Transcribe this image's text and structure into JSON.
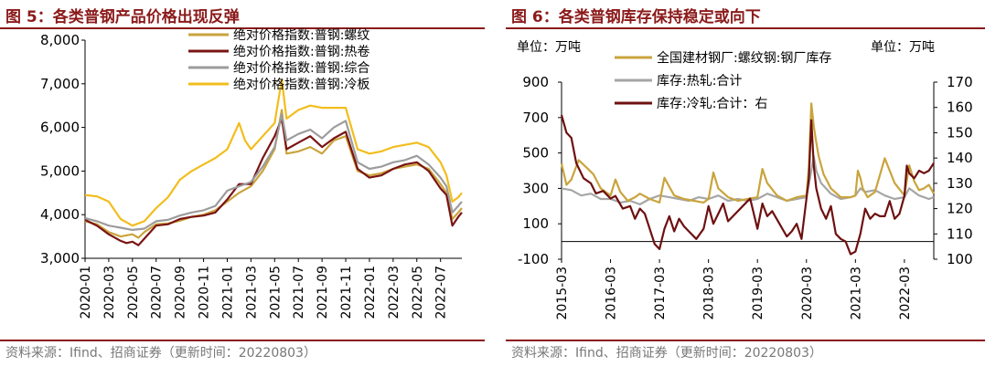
{
  "figures": [
    {
      "title": "图 5：各类普钢产品价格出现反弹",
      "source": "资料来源：Ifind、招商证券（更新时间：20220803）"
    },
    {
      "title": "图 6：各类普钢库存保持稳定或向下",
      "source": "资料来源：Ifind、招商证券（更新时间：20220803）"
    }
  ],
  "chart_data": [
    {
      "type": "line",
      "title": "图 5：各类普钢产品价格出现反弹",
      "ylim": [
        3000,
        8000
      ],
      "yticks": [
        "3,000",
        "4,000",
        "5,000",
        "6,000",
        "7,000",
        "8,000"
      ],
      "xticks": [
        "2020-01",
        "2020-03",
        "2020-05",
        "2020-07",
        "2020-09",
        "2020-11",
        "2021-01",
        "2021-03",
        "2021-05",
        "2021-07",
        "2021-09",
        "2021-11",
        "2022-01",
        "2022-03",
        "2022-05",
        "2022-07"
      ],
      "xlim": [
        0,
        31.8
      ],
      "legend": "top-center",
      "series": [
        {
          "name": "绝对价格指数:普钢:螺纹",
          "color": "#c9a43c",
          "x": [
            0,
            1,
            2,
            3,
            4,
            4.5,
            5,
            6,
            7,
            8,
            9,
            10,
            11,
            12,
            13,
            14,
            15,
            16,
            16.6,
            17,
            18,
            19,
            20,
            21,
            22,
            23,
            24,
            25,
            26,
            27,
            28,
            29,
            30,
            30.5,
            31,
            31.5,
            31.8
          ],
          "values": [
            3850,
            3780,
            3600,
            3500,
            3550,
            3470,
            3600,
            3780,
            3800,
            3860,
            3950,
            4000,
            4100,
            4300,
            4500,
            4650,
            5000,
            5500,
            6400,
            5400,
            5450,
            5550,
            5400,
            5700,
            5800,
            5000,
            4900,
            4950,
            5050,
            5100,
            5150,
            5050,
            4700,
            4500,
            3900,
            4050,
            4150
          ]
        },
        {
          "name": "绝对价格指数:普钢:热卷",
          "color": "#7a1414",
          "x": [
            0,
            1,
            2,
            3,
            3.5,
            4,
            4.5,
            5,
            6,
            7,
            8,
            9,
            10,
            11,
            12,
            13,
            14,
            15,
            16,
            16.6,
            17,
            18,
            19,
            20,
            21,
            22,
            23,
            24,
            25,
            26,
            27,
            28,
            29,
            30,
            30.5,
            31,
            31.5,
            31.8
          ],
          "values": [
            3880,
            3750,
            3550,
            3400,
            3350,
            3380,
            3300,
            3450,
            3750,
            3780,
            3900,
            3950,
            3980,
            4050,
            4350,
            4700,
            4700,
            5300,
            5800,
            6200,
            5500,
            5650,
            5800,
            5550,
            5750,
            5900,
            5050,
            4850,
            4900,
            5050,
            5150,
            5200,
            5000,
            4600,
            4450,
            3750,
            3950,
            4050
          ]
        },
        {
          "name": "绝对价格指数:普钢:综合",
          "color": "#9c9c9c",
          "x": [
            0,
            1,
            2,
            3,
            4,
            5,
            6,
            7,
            8,
            9,
            10,
            11,
            12,
            13,
            14,
            15,
            16,
            16.6,
            17,
            18,
            19,
            20,
            21,
            22,
            23,
            24,
            25,
            26,
            27,
            28,
            29,
            30,
            30.5,
            31,
            31.5,
            31.8
          ],
          "values": [
            3920,
            3850,
            3750,
            3700,
            3650,
            3680,
            3850,
            3880,
            3980,
            4050,
            4100,
            4200,
            4550,
            4650,
            4750,
            5100,
            5550,
            6300,
            5700,
            5850,
            5950,
            5750,
            6000,
            6150,
            5200,
            5050,
            5100,
            5200,
            5250,
            5350,
            5150,
            4850,
            4650,
            4050,
            4200,
            4300
          ]
        },
        {
          "name": "绝对价格指数:普钢:冷板",
          "color": "#f2bd1d",
          "x": [
            0,
            1,
            2,
            3,
            4,
            5,
            6,
            7,
            8,
            9,
            10,
            11,
            12,
            13,
            13.5,
            14,
            15,
            16,
            16.6,
            17,
            18,
            19,
            20,
            21,
            22,
            23,
            24,
            25,
            26,
            27,
            28,
            29,
            30,
            30.5,
            31,
            31.5,
            31.8
          ],
          "values": [
            4450,
            4420,
            4300,
            3900,
            3750,
            3850,
            4150,
            4400,
            4800,
            5000,
            5150,
            5300,
            5500,
            6100,
            5700,
            5500,
            5800,
            6100,
            7100,
            6200,
            6400,
            6500,
            6450,
            6450,
            6450,
            5500,
            5400,
            5450,
            5550,
            5600,
            5650,
            5550,
            5200,
            4900,
            4300,
            4400,
            4500
          ]
        }
      ]
    },
    {
      "type": "line",
      "title": "图 6：各类普钢库存保持稳定或向下",
      "ylim_left": [
        -100,
        900
      ],
      "ylim_right": [
        100,
        170
      ],
      "yticks_left": [
        "-100",
        "100",
        "300",
        "500",
        "700",
        "900"
      ],
      "yticks_right": [
        "100",
        "110",
        "120",
        "130",
        "140",
        "150",
        "160",
        "170"
      ],
      "unit_left": "单位：万吨",
      "unit_right": "单位：万吨",
      "xticks": [
        "2015-03",
        "2016-03",
        "2017-03",
        "2018-03",
        "2019-03",
        "2020-03",
        "2021-03",
        "2022-03"
      ],
      "xlim": [
        2015.0,
        2022.6
      ],
      "legend": "top",
      "series": [
        {
          "name": "全国建材钢厂:螺纹钢:钢厂库存",
          "color": "#c9a43c",
          "axis": "left",
          "x": [
            2015.0,
            2015.1,
            2015.2,
            2015.35,
            2015.5,
            2015.65,
            2015.8,
            2016.0,
            2016.1,
            2016.2,
            2016.35,
            2016.5,
            2016.6,
            2016.8,
            2017.0,
            2017.1,
            2017.2,
            2017.3,
            2017.5,
            2017.7,
            2017.9,
            2018.0,
            2018.1,
            2018.2,
            2018.4,
            2018.6,
            2018.8,
            2019.0,
            2019.1,
            2019.2,
            2019.4,
            2019.6,
            2019.8,
            2020.0,
            2020.05,
            2020.1,
            2020.15,
            2020.2,
            2020.25,
            2020.35,
            2020.5,
            2020.7,
            2020.9,
            2021.0,
            2021.05,
            2021.1,
            2021.15,
            2021.25,
            2021.4,
            2021.6,
            2021.8,
            2022.0,
            2022.1,
            2022.2,
            2022.3,
            2022.4,
            2022.5,
            2022.6
          ],
          "values": [
            440,
            320,
            350,
            460,
            420,
            380,
            300,
            260,
            350,
            280,
            230,
            250,
            270,
            240,
            220,
            360,
            310,
            260,
            240,
            230,
            220,
            240,
            390,
            300,
            250,
            230,
            240,
            250,
            410,
            330,
            260,
            230,
            250,
            260,
            420,
            780,
            650,
            560,
            480,
            380,
            300,
            250,
            250,
            260,
            400,
            360,
            300,
            250,
            280,
            470,
            330,
            260,
            430,
            340,
            290,
            300,
            320,
            270
          ]
        },
        {
          "name": "库存:热轧:合计",
          "color": "#a6a6a6",
          "axis": "left",
          "x": [
            2015.0,
            2015.2,
            2015.4,
            2015.6,
            2015.8,
            2016.0,
            2016.2,
            2016.4,
            2016.6,
            2016.8,
            2017.0,
            2017.2,
            2017.4,
            2017.6,
            2017.8,
            2018.0,
            2018.2,
            2018.4,
            2018.6,
            2018.8,
            2019.0,
            2019.2,
            2019.4,
            2019.6,
            2019.8,
            2020.0,
            2020.1,
            2020.15,
            2020.2,
            2020.3,
            2020.5,
            2020.7,
            2020.9,
            2021.0,
            2021.1,
            2021.2,
            2021.4,
            2021.6,
            2021.8,
            2022.0,
            2022.1,
            2022.2,
            2022.3,
            2022.4,
            2022.5,
            2022.6
          ],
          "values": [
            300,
            290,
            260,
            270,
            240,
            240,
            220,
            230,
            210,
            240,
            260,
            250,
            240,
            230,
            250,
            240,
            260,
            230,
            240,
            230,
            240,
            270,
            250,
            230,
            240,
            250,
            400,
            480,
            400,
            330,
            270,
            240,
            250,
            260,
            300,
            280,
            290,
            260,
            240,
            250,
            300,
            280,
            260,
            250,
            240,
            250
          ]
        },
        {
          "name": "库存:冷轧:合计：右",
          "color": "#6e1010",
          "axis": "right",
          "x": [
            2015.0,
            2015.1,
            2015.2,
            2015.3,
            2015.45,
            2015.6,
            2015.7,
            2015.85,
            2016.0,
            2016.1,
            2016.25,
            2016.4,
            2016.5,
            2016.6,
            2016.7,
            2016.8,
            2016.9,
            2017.0,
            2017.1,
            2017.2,
            2017.3,
            2017.4,
            2017.5,
            2017.6,
            2017.75,
            2017.9,
            2018.0,
            2018.1,
            2018.2,
            2018.3,
            2018.4,
            2018.55,
            2018.7,
            2018.85,
            2019.0,
            2019.1,
            2019.2,
            2019.3,
            2019.45,
            2019.6,
            2019.7,
            2019.8,
            2019.9,
            2020.0,
            2020.05,
            2020.1,
            2020.15,
            2020.2,
            2020.3,
            2020.4,
            2020.5,
            2020.6,
            2020.7,
            2020.8,
            2020.9,
            2021.0,
            2021.1,
            2021.2,
            2021.3,
            2021.4,
            2021.5,
            2021.6,
            2021.7,
            2021.8,
            2021.9,
            2022.0,
            2022.05,
            2022.1,
            2022.2,
            2022.3,
            2022.4,
            2022.5,
            2022.6
          ],
          "values": [
            157,
            150,
            148,
            138,
            132,
            130,
            126,
            127,
            124,
            125,
            120,
            121,
            116,
            120,
            118,
            112,
            106,
            104,
            112,
            117,
            111,
            116,
            113,
            111,
            108,
            112,
            121,
            114,
            118,
            122,
            115,
            118,
            121,
            124,
            112,
            122,
            117,
            119,
            114,
            109,
            111,
            114,
            108,
            124,
            132,
            155,
            137,
            128,
            120,
            116,
            121,
            110,
            108,
            107,
            102,
            103,
            110,
            120,
            116,
            118,
            117,
            117,
            123,
            116,
            118,
            125,
            137,
            134,
            132,
            135,
            134,
            135,
            138
          ]
        }
      ]
    }
  ]
}
